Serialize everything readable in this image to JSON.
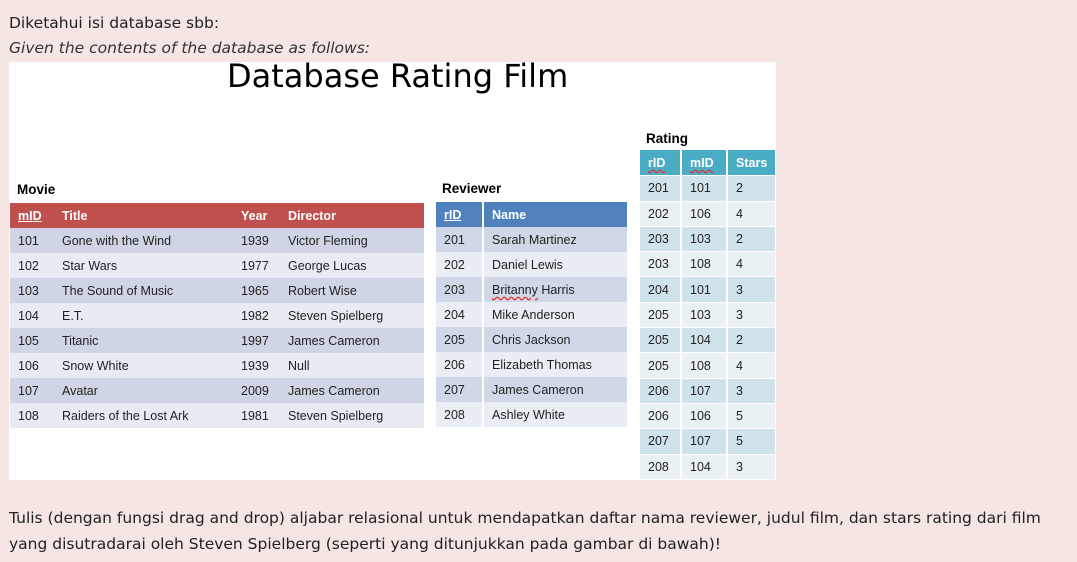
{
  "intro": {
    "line1": "Diketahui isi database sbb:",
    "line2": "Given the contents of the database as follows:"
  },
  "panel": {
    "title": "Database Rating Film"
  },
  "movie": {
    "label": "Movie",
    "headers": [
      "mID",
      "Title",
      "Year",
      "Director"
    ],
    "rows": [
      [
        "101",
        "Gone with the Wind",
        "1939",
        "Victor Fleming"
      ],
      [
        "102",
        "Star Wars",
        "1977",
        "George Lucas"
      ],
      [
        "103",
        "The Sound of Music",
        "1965",
        "Robert Wise"
      ],
      [
        "104",
        "E.T.",
        "1982",
        "Steven Spielberg"
      ],
      [
        "105",
        "Titanic",
        "1997",
        "James Cameron"
      ],
      [
        "106",
        "Snow White",
        "1939",
        "Null"
      ],
      [
        "107",
        "Avatar",
        "2009",
        "James Cameron"
      ],
      [
        "108",
        "Raiders of the Lost Ark",
        "1981",
        "Steven Spielberg"
      ]
    ]
  },
  "reviewer": {
    "label": "Reviewer",
    "headers": [
      "rID",
      "Name"
    ],
    "rows": [
      [
        "201",
        "Sarah Martinez"
      ],
      [
        "202",
        "Daniel Lewis"
      ],
      [
        "203",
        "Britanny Harris"
      ],
      [
        "204",
        "Mike Anderson"
      ],
      [
        "205",
        "Chris Jackson"
      ],
      [
        "206",
        "Elizabeth Thomas"
      ],
      [
        "207",
        "James Cameron"
      ],
      [
        "208",
        "Ashley White"
      ]
    ]
  },
  "rating": {
    "label": "Rating",
    "headers": [
      "rID",
      "mID",
      "Stars"
    ],
    "rows": [
      [
        "201",
        "101",
        "2"
      ],
      [
        "202",
        "106",
        "4"
      ],
      [
        "203",
        "103",
        "2"
      ],
      [
        "203",
        "108",
        "4"
      ],
      [
        "204",
        "101",
        "3"
      ],
      [
        "205",
        "103",
        "3"
      ],
      [
        "205",
        "104",
        "2"
      ],
      [
        "205",
        "108",
        "4"
      ],
      [
        "206",
        "107",
        "3"
      ],
      [
        "206",
        "106",
        "5"
      ],
      [
        "207",
        "107",
        "5"
      ],
      [
        "208",
        "104",
        "3"
      ]
    ]
  },
  "question": {
    "text": "Tulis (dengan fungsi drag and drop) aljabar relasional untuk mendapatkan daftar nama reviewer, judul film, dan stars rating dari film yang disutradarai oleh Steven Spielberg (seperti yang ditunjukkan pada gambar di bawah)!"
  },
  "colors": {
    "page_bg": "#f5e6e4",
    "movie_header": "#c0504d",
    "reviewer_header": "#4f81bd",
    "rating_header": "#4bacc6"
  }
}
